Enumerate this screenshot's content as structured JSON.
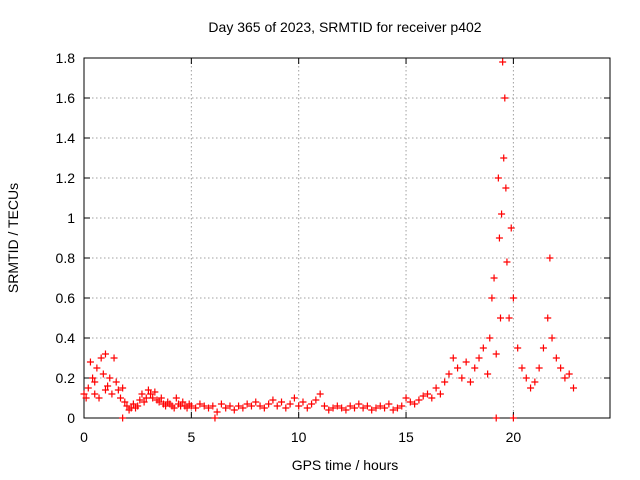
{
  "chart_data": {
    "type": "scatter",
    "title": "Day 365 of 2023, SRMTID for receiver p402",
    "xlabel": "GPS time / hours",
    "ylabel": "SRMTID / TECUs",
    "xlim": [
      0,
      24.5
    ],
    "ylim": [
      0,
      1.8
    ],
    "xticks": [
      0,
      5,
      10,
      15,
      20
    ],
    "xtick_labels": [
      "0",
      "5",
      "10",
      "15",
      "20"
    ],
    "yticks": [
      0,
      0.2,
      0.4,
      0.6,
      0.8,
      1.0,
      1.2,
      1.4,
      1.6,
      1.8
    ],
    "ytick_labels": [
      "0",
      "0.2",
      "0.4",
      "0.6",
      "0.8",
      "1",
      "1.2",
      "1.4",
      "1.6",
      "1.8"
    ],
    "grid": true,
    "marker": "+",
    "color": "#ff0000",
    "series": [
      {
        "name": "SRMTID",
        "x": [
          0.0,
          0.1,
          0.2,
          0.3,
          0.4,
          0.5,
          0.5,
          0.6,
          0.7,
          0.8,
          0.9,
          1.0,
          1.0,
          1.1,
          1.2,
          1.3,
          1.4,
          1.5,
          1.6,
          1.7,
          1.8,
          1.9,
          2.0,
          2.1,
          2.2,
          2.3,
          2.4,
          2.5,
          2.6,
          2.7,
          2.8,
          2.9,
          3.0,
          3.1,
          3.2,
          3.3,
          3.4,
          3.5,
          3.6,
          3.7,
          3.8,
          3.9,
          4.0,
          4.1,
          4.2,
          4.3,
          4.4,
          4.5,
          4.6,
          4.7,
          4.8,
          4.9,
          5.0,
          5.2,
          5.4,
          5.6,
          5.8,
          6.0,
          6.2,
          6.4,
          6.6,
          6.8,
          7.0,
          7.2,
          7.4,
          7.6,
          7.8,
          8.0,
          8.2,
          8.4,
          8.6,
          8.8,
          9.0,
          9.2,
          9.4,
          9.6,
          9.8,
          10.0,
          10.2,
          10.4,
          10.6,
          10.8,
          11.0,
          11.2,
          11.4,
          11.6,
          11.8,
          12.0,
          12.2,
          12.4,
          12.6,
          12.8,
          13.0,
          13.2,
          13.4,
          13.6,
          13.8,
          14.0,
          14.2,
          14.4,
          14.6,
          14.8,
          15.0,
          15.2,
          15.4,
          15.6,
          15.8,
          16.0,
          16.2,
          16.4,
          16.6,
          16.8,
          17.0,
          17.2,
          17.4,
          17.6,
          17.8,
          18.0,
          18.2,
          18.4,
          18.6,
          18.8,
          18.9,
          19.0,
          19.1,
          19.2,
          19.3,
          19.35,
          19.4,
          19.45,
          19.5,
          19.55,
          19.6,
          19.65,
          19.7,
          19.8,
          19.9,
          20.0,
          20.2,
          20.4,
          20.6,
          20.8,
          21.0,
          21.2,
          21.4,
          21.6,
          21.7,
          21.8,
          22.0,
          22.2,
          22.4,
          22.6,
          22.8
        ],
        "y": [
          0.12,
          0.1,
          0.15,
          0.28,
          0.2,
          0.12,
          0.18,
          0.25,
          0.1,
          0.3,
          0.22,
          0.14,
          0.32,
          0.16,
          0.2,
          0.12,
          0.3,
          0.18,
          0.14,
          0.1,
          0.15,
          0.08,
          0.06,
          0.04,
          0.05,
          0.07,
          0.05,
          0.06,
          0.09,
          0.12,
          0.08,
          0.1,
          0.14,
          0.12,
          0.1,
          0.13,
          0.09,
          0.08,
          0.1,
          0.07,
          0.06,
          0.08,
          0.07,
          0.06,
          0.05,
          0.1,
          0.07,
          0.06,
          0.08,
          0.06,
          0.05,
          0.07,
          0.06,
          0.05,
          0.07,
          0.06,
          0.05,
          0.06,
          0.03,
          0.07,
          0.05,
          0.06,
          0.04,
          0.06,
          0.05,
          0.07,
          0.06,
          0.08,
          0.06,
          0.05,
          0.07,
          0.09,
          0.06,
          0.08,
          0.05,
          0.07,
          0.1,
          0.06,
          0.08,
          0.05,
          0.07,
          0.09,
          0.12,
          0.06,
          0.04,
          0.05,
          0.06,
          0.05,
          0.04,
          0.06,
          0.05,
          0.07,
          0.05,
          0.06,
          0.04,
          0.05,
          0.06,
          0.05,
          0.07,
          0.04,
          0.05,
          0.06,
          0.1,
          0.08,
          0.07,
          0.09,
          0.11,
          0.12,
          0.1,
          0.15,
          0.12,
          0.18,
          0.22,
          0.3,
          0.25,
          0.2,
          0.28,
          0.18,
          0.25,
          0.3,
          0.35,
          0.22,
          0.4,
          0.6,
          0.7,
          0.32,
          1.2,
          0.9,
          0.5,
          1.02,
          1.78,
          1.3,
          1.6,
          1.15,
          0.78,
          0.5,
          0.95,
          0.6,
          0.35,
          0.25,
          0.2,
          0.15,
          0.18,
          0.25,
          0.35,
          0.5,
          0.8,
          0.4,
          0.3,
          0.25,
          0.2,
          0.22,
          0.15
        ],
        "zero_marks_x": [
          1.8,
          6.1,
          19.2,
          20.0
        ]
      }
    ]
  }
}
